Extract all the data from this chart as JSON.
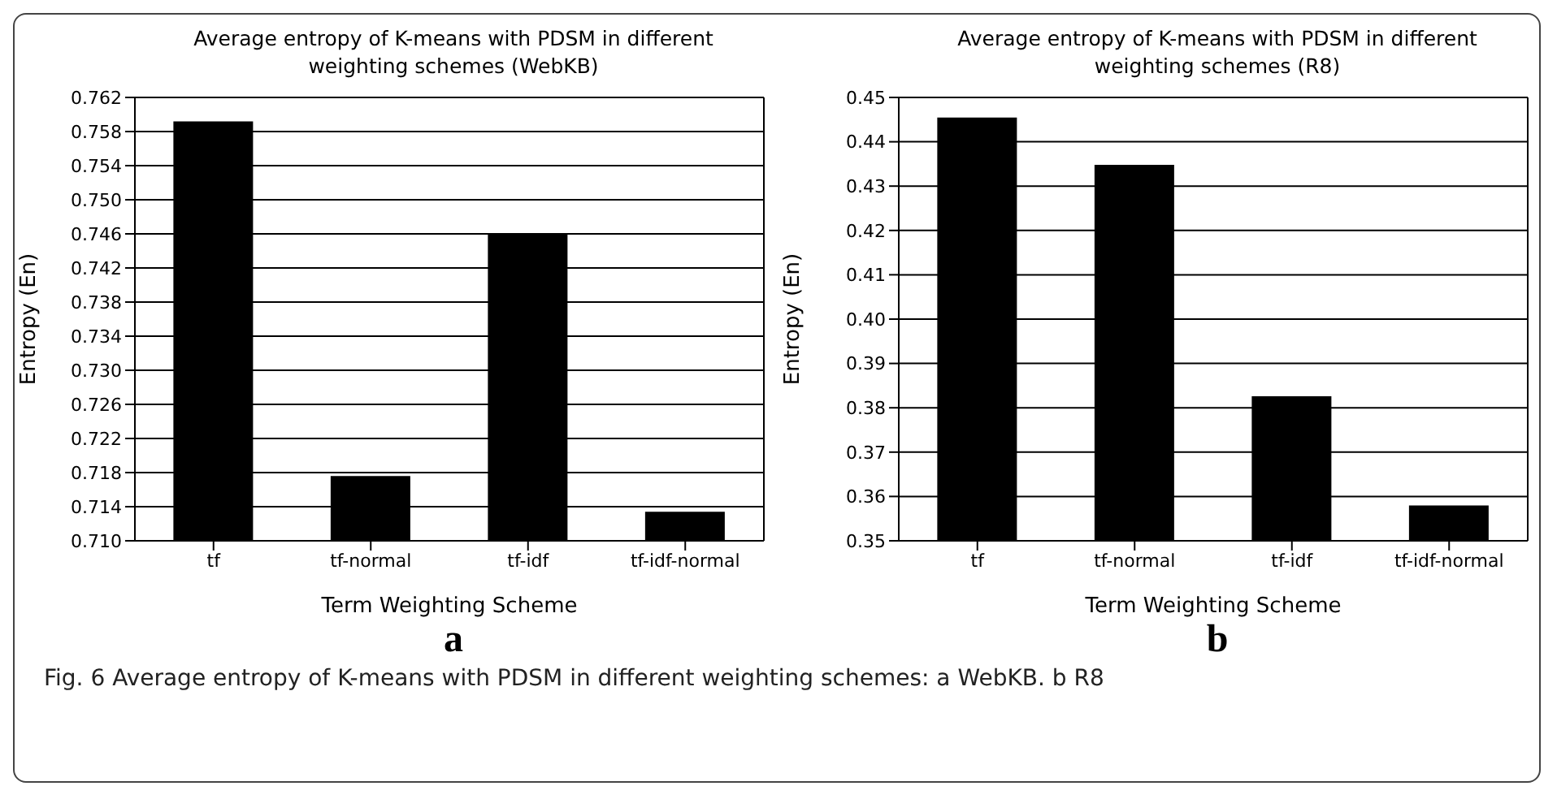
{
  "chart_data": [
    {
      "type": "bar",
      "title": "Average entropy of K-means with PDSM in different weighting schemes (WebKB)",
      "xlabel": "Term Weighting Scheme",
      "ylabel": "Entropy (En)",
      "categories": [
        "tf",
        "tf-normal",
        "tf-idf",
        "tf-idf-normal"
      ],
      "values": [
        0.7591,
        0.7175,
        0.7459,
        0.7133
      ],
      "color": "#000000",
      "ylim": [
        0.71,
        0.762
      ],
      "yticks": [
        {
          "value": 0.71,
          "label": "0.710"
        },
        {
          "value": 0.714,
          "label": "0.714"
        },
        {
          "value": 0.718,
          "label": "0.718"
        },
        {
          "value": 0.722,
          "label": "0.722"
        },
        {
          "value": 0.726,
          "label": "0.726"
        },
        {
          "value": 0.73,
          "label": "0.730"
        },
        {
          "value": 0.734,
          "label": "0.734"
        },
        {
          "value": 0.738,
          "label": "0.738"
        },
        {
          "value": 0.742,
          "label": "0.742"
        },
        {
          "value": 0.746,
          "label": "0.746"
        },
        {
          "value": 0.75,
          "label": "0.750"
        },
        {
          "value": 0.754,
          "label": "0.754"
        },
        {
          "value": 0.758,
          "label": "0.758"
        },
        {
          "value": 0.762,
          "label": "0.762"
        }
      ],
      "grid": "y",
      "annotations": [
        "a"
      ]
    },
    {
      "type": "bar",
      "title": "Average entropy of K-means with PDSM in different weighting schemes (R8)",
      "xlabel": "Term Weighting Scheme",
      "ylabel": "Entropy (En)",
      "categories": [
        "tf",
        "tf-normal",
        "tf-idf",
        "tf-idf-normal"
      ],
      "values": [
        0.4453,
        0.4346,
        0.3824,
        0.3578
      ],
      "color": "#000000",
      "ylim": [
        0.35,
        0.45
      ],
      "yticks": [
        {
          "value": 0.35,
          "label": "0.35"
        },
        {
          "value": 0.36,
          "label": "0.36"
        },
        {
          "value": 0.37,
          "label": "0.37"
        },
        {
          "value": 0.38,
          "label": "0.38"
        },
        {
          "value": 0.39,
          "label": "0.39"
        },
        {
          "value": 0.4,
          "label": "0.40"
        },
        {
          "value": 0.41,
          "label": "0.41"
        },
        {
          "value": 0.42,
          "label": "0.42"
        },
        {
          "value": 0.43,
          "label": "0.43"
        },
        {
          "value": 0.44,
          "label": "0.44"
        },
        {
          "value": 0.45,
          "label": "0.45"
        }
      ],
      "grid": "y",
      "annotations": [
        "b",
        "Fig. 6  Average entropy of K-means with PDSM in different weighting schemes: a WebKB. b R8"
      ]
    }
  ]
}
